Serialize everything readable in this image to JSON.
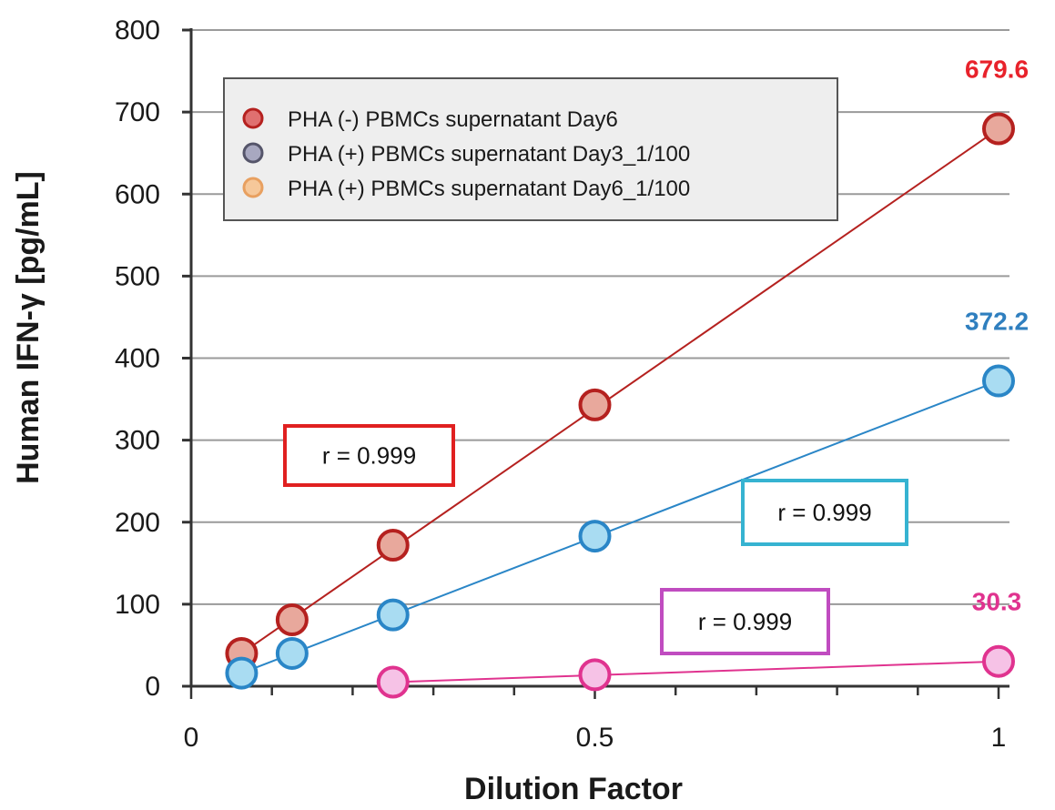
{
  "chart_data": {
    "type": "scatter",
    "xlabel": "Dilution Factor",
    "ylabel": "Human IFN-γ [pg/mL]",
    "xlim": [
      0,
      1
    ],
    "ylim": [
      0,
      800
    ],
    "x_ticks": [
      "0",
      "0.5",
      "1"
    ],
    "y_ticks": [
      "0",
      "100",
      "200",
      "300",
      "400",
      "500",
      "600",
      "700",
      "800"
    ],
    "grid": "horizontal",
    "legend_placement": "top-left",
    "legend": [
      {
        "label": "PHA (-) PBMCs supernatant Day6",
        "color": "#c0392b"
      },
      {
        "label": "PHA (+) PBMCs supernatant Day3_1/100",
        "color": "#6a6a8a"
      },
      {
        "label": "PHA (+) PBMCs supernatant Day6_1/100",
        "color": "#f0b27a"
      }
    ],
    "series": [
      {
        "color": "#b5211f",
        "marker_fill": "#e8a89c",
        "points": [
          {
            "x": 0.0625,
            "y": 40
          },
          {
            "x": 0.125,
            "y": 81
          },
          {
            "x": 0.25,
            "y": 172
          },
          {
            "x": 0.5,
            "y": 343
          },
          {
            "x": 1,
            "y": 679.6
          }
        ],
        "end_label": "679.6",
        "r_label": "r = 0.999"
      },
      {
        "color": "#2a86c7",
        "marker_fill": "#a9dcf2",
        "points": [
          {
            "x": 0.0625,
            "y": 16
          },
          {
            "x": 0.125,
            "y": 40
          },
          {
            "x": 0.25,
            "y": 87
          },
          {
            "x": 0.5,
            "y": 183
          },
          {
            "x": 1,
            "y": 372.2
          }
        ],
        "end_label": "372.2",
        "r_label": "r = 0.999"
      },
      {
        "color": "#e0338f",
        "marker_fill": "#f6c2e6",
        "points": [
          {
            "x": 0.25,
            "y": 5
          },
          {
            "x": 0.5,
            "y": 14
          },
          {
            "x": 1,
            "y": 30.3
          }
        ],
        "end_label": "30.3",
        "r_label": "r = 0.999"
      }
    ],
    "colors": {
      "r_box_series1": "#e02020",
      "r_box_series2": "#36b3d1",
      "r_box_series3": "#c04cc0",
      "end_label_series1": "#e8222b",
      "end_label_series2": "#2f7fbf",
      "end_label_series3": "#e0338f"
    }
  }
}
